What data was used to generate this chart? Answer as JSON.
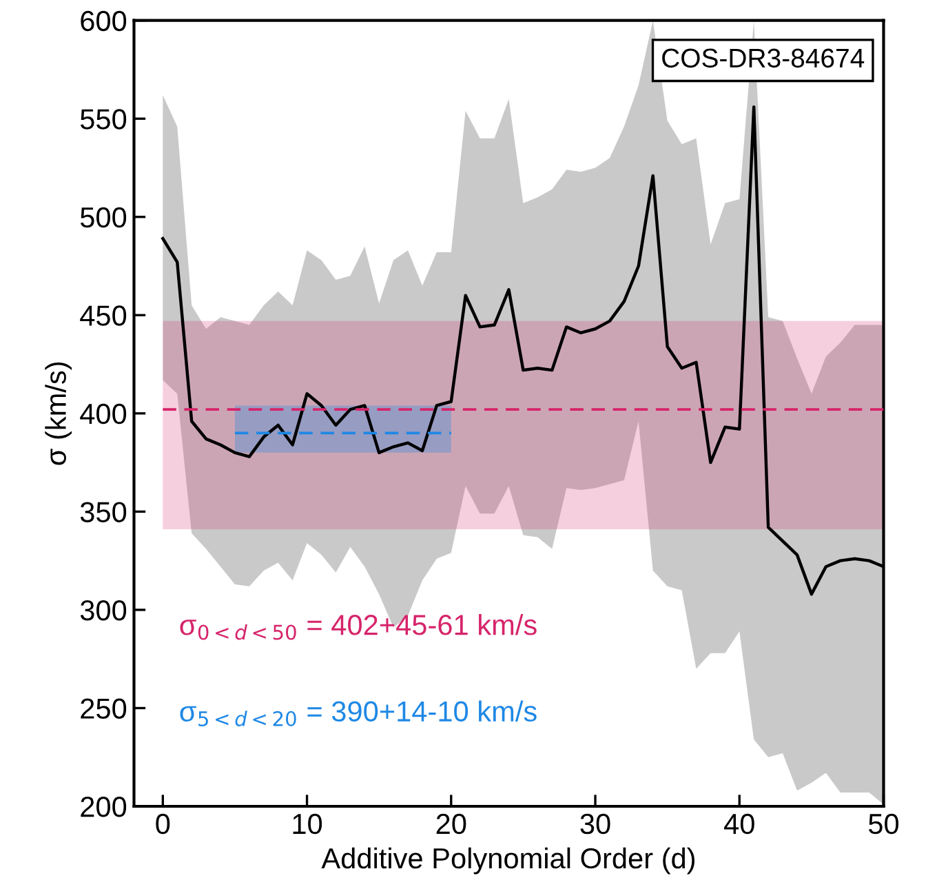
{
  "chart_data": {
    "type": "line",
    "title": "COS-DR3-84674",
    "xlabel": "Additive Polynomial Order (d)",
    "ylabel": "σ (km/s)",
    "xlim": [
      -2,
      50
    ],
    "ylim": [
      200,
      600
    ],
    "xticks": [
      0,
      10,
      20,
      30,
      40,
      50
    ],
    "yticks": [
      200,
      250,
      300,
      350,
      400,
      450,
      500,
      550,
      600
    ],
    "grid": false,
    "marker": "none",
    "series": [
      {
        "color": "#000000",
        "line_style": "solid",
        "x": [
          0,
          1,
          2,
          3,
          4,
          5,
          6,
          7,
          8,
          9,
          10,
          11,
          12,
          13,
          14,
          15,
          16,
          17,
          18,
          19,
          20,
          21,
          22,
          23,
          24,
          25,
          26,
          27,
          28,
          29,
          30,
          31,
          32,
          33,
          34,
          35,
          36,
          37,
          38,
          39,
          40,
          41,
          42,
          43,
          44,
          45,
          46,
          47,
          48,
          49,
          50
        ],
        "values": [
          489,
          477,
          396,
          387,
          384,
          380,
          378,
          388,
          394,
          384,
          410,
          404,
          394,
          402,
          404,
          380,
          383,
          385,
          381,
          404,
          406,
          460,
          444,
          445,
          463,
          422,
          423,
          422,
          444,
          441,
          443,
          447,
          457,
          475,
          521,
          434,
          423,
          426,
          375,
          393,
          392,
          556,
          342,
          335,
          328,
          308,
          322,
          325,
          326,
          325,
          322
        ],
        "upper": [
          562,
          546,
          455,
          443,
          449,
          447,
          445,
          455,
          462,
          455,
          483,
          478,
          468,
          470,
          485,
          456,
          478,
          483,
          465,
          482,
          482,
          554,
          540,
          540,
          560,
          507,
          510,
          514,
          524,
          523,
          525,
          530,
          546,
          567,
          600,
          549,
          537,
          540,
          486,
          507,
          509,
          600,
          449,
          447,
          428,
          410,
          429,
          436,
          445,
          445,
          445
        ],
        "lower": [
          417,
          410,
          339,
          331,
          322,
          313,
          312,
          320,
          324,
          315,
          334,
          328,
          319,
          332,
          322,
          308,
          291,
          297,
          315,
          326,
          329,
          363,
          349,
          349,
          363,
          338,
          337,
          331,
          362,
          361,
          362,
          364,
          366,
          396,
          320,
          312,
          310,
          270,
          278,
          278,
          289,
          234,
          225,
          227,
          208,
          212,
          217,
          207,
          207,
          207,
          201
        ]
      },
      {
        "color": "#d6246a",
        "line_style": "dashed",
        "x": [
          0,
          50
        ],
        "values": [
          402,
          402
        ],
        "lower": [
          341,
          341
        ],
        "upper": [
          447,
          447
        ]
      },
      {
        "color": "#1e88e5",
        "line_style": "dashed",
        "x": [
          5,
          20
        ],
        "values": [
          390,
          390
        ],
        "lower": [
          380,
          380
        ],
        "upper": [
          404,
          404
        ]
      }
    ],
    "annotations": [
      "σ$_{0<d<50}$ = 402+45-61 km/s",
      "σ$_{5<d<20}$ = 390+14-10 km/s"
    ]
  }
}
